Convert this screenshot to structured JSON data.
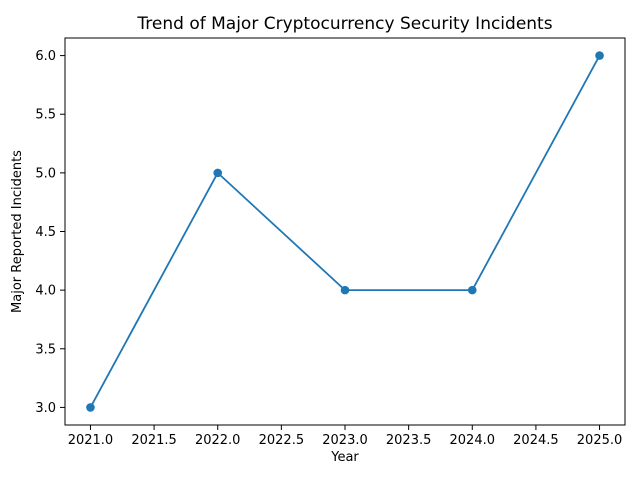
{
  "figure": {
    "background": "#ffffff",
    "frame_color": "#000000"
  },
  "chart_data": {
    "type": "line",
    "title": "Trend of Major Cryptocurrency Security Incidents",
    "xlabel": "Year",
    "ylabel": "Major Reported Incidents",
    "x": [
      2021,
      2022,
      2023,
      2024,
      2025
    ],
    "series": [
      {
        "name": "Major Reported Incidents",
        "values": [
          3,
          5,
          4,
          4,
          6
        ]
      }
    ],
    "x_ticks": [
      2021.0,
      2021.5,
      2022.0,
      2022.5,
      2023.0,
      2023.5,
      2024.0,
      2024.5,
      2025.0
    ],
    "x_tick_labels": [
      "2021.0",
      "2021.5",
      "2022.0",
      "2022.5",
      "2023.0",
      "2023.5",
      "2024.0",
      "2024.5",
      "2025.0"
    ],
    "y_ticks": [
      3.0,
      3.5,
      4.0,
      4.5,
      5.0,
      5.5,
      6.0
    ],
    "y_tick_labels": [
      "3.0",
      "3.5",
      "4.0",
      "4.5",
      "5.0",
      "5.5",
      "6.0"
    ],
    "xlim": [
      2020.8,
      2025.2
    ],
    "ylim": [
      2.85,
      6.15
    ],
    "line_color": "#1f77b4",
    "marker": "o",
    "marker_color": "#1f77b4",
    "grid": false,
    "legend_position": "none"
  }
}
